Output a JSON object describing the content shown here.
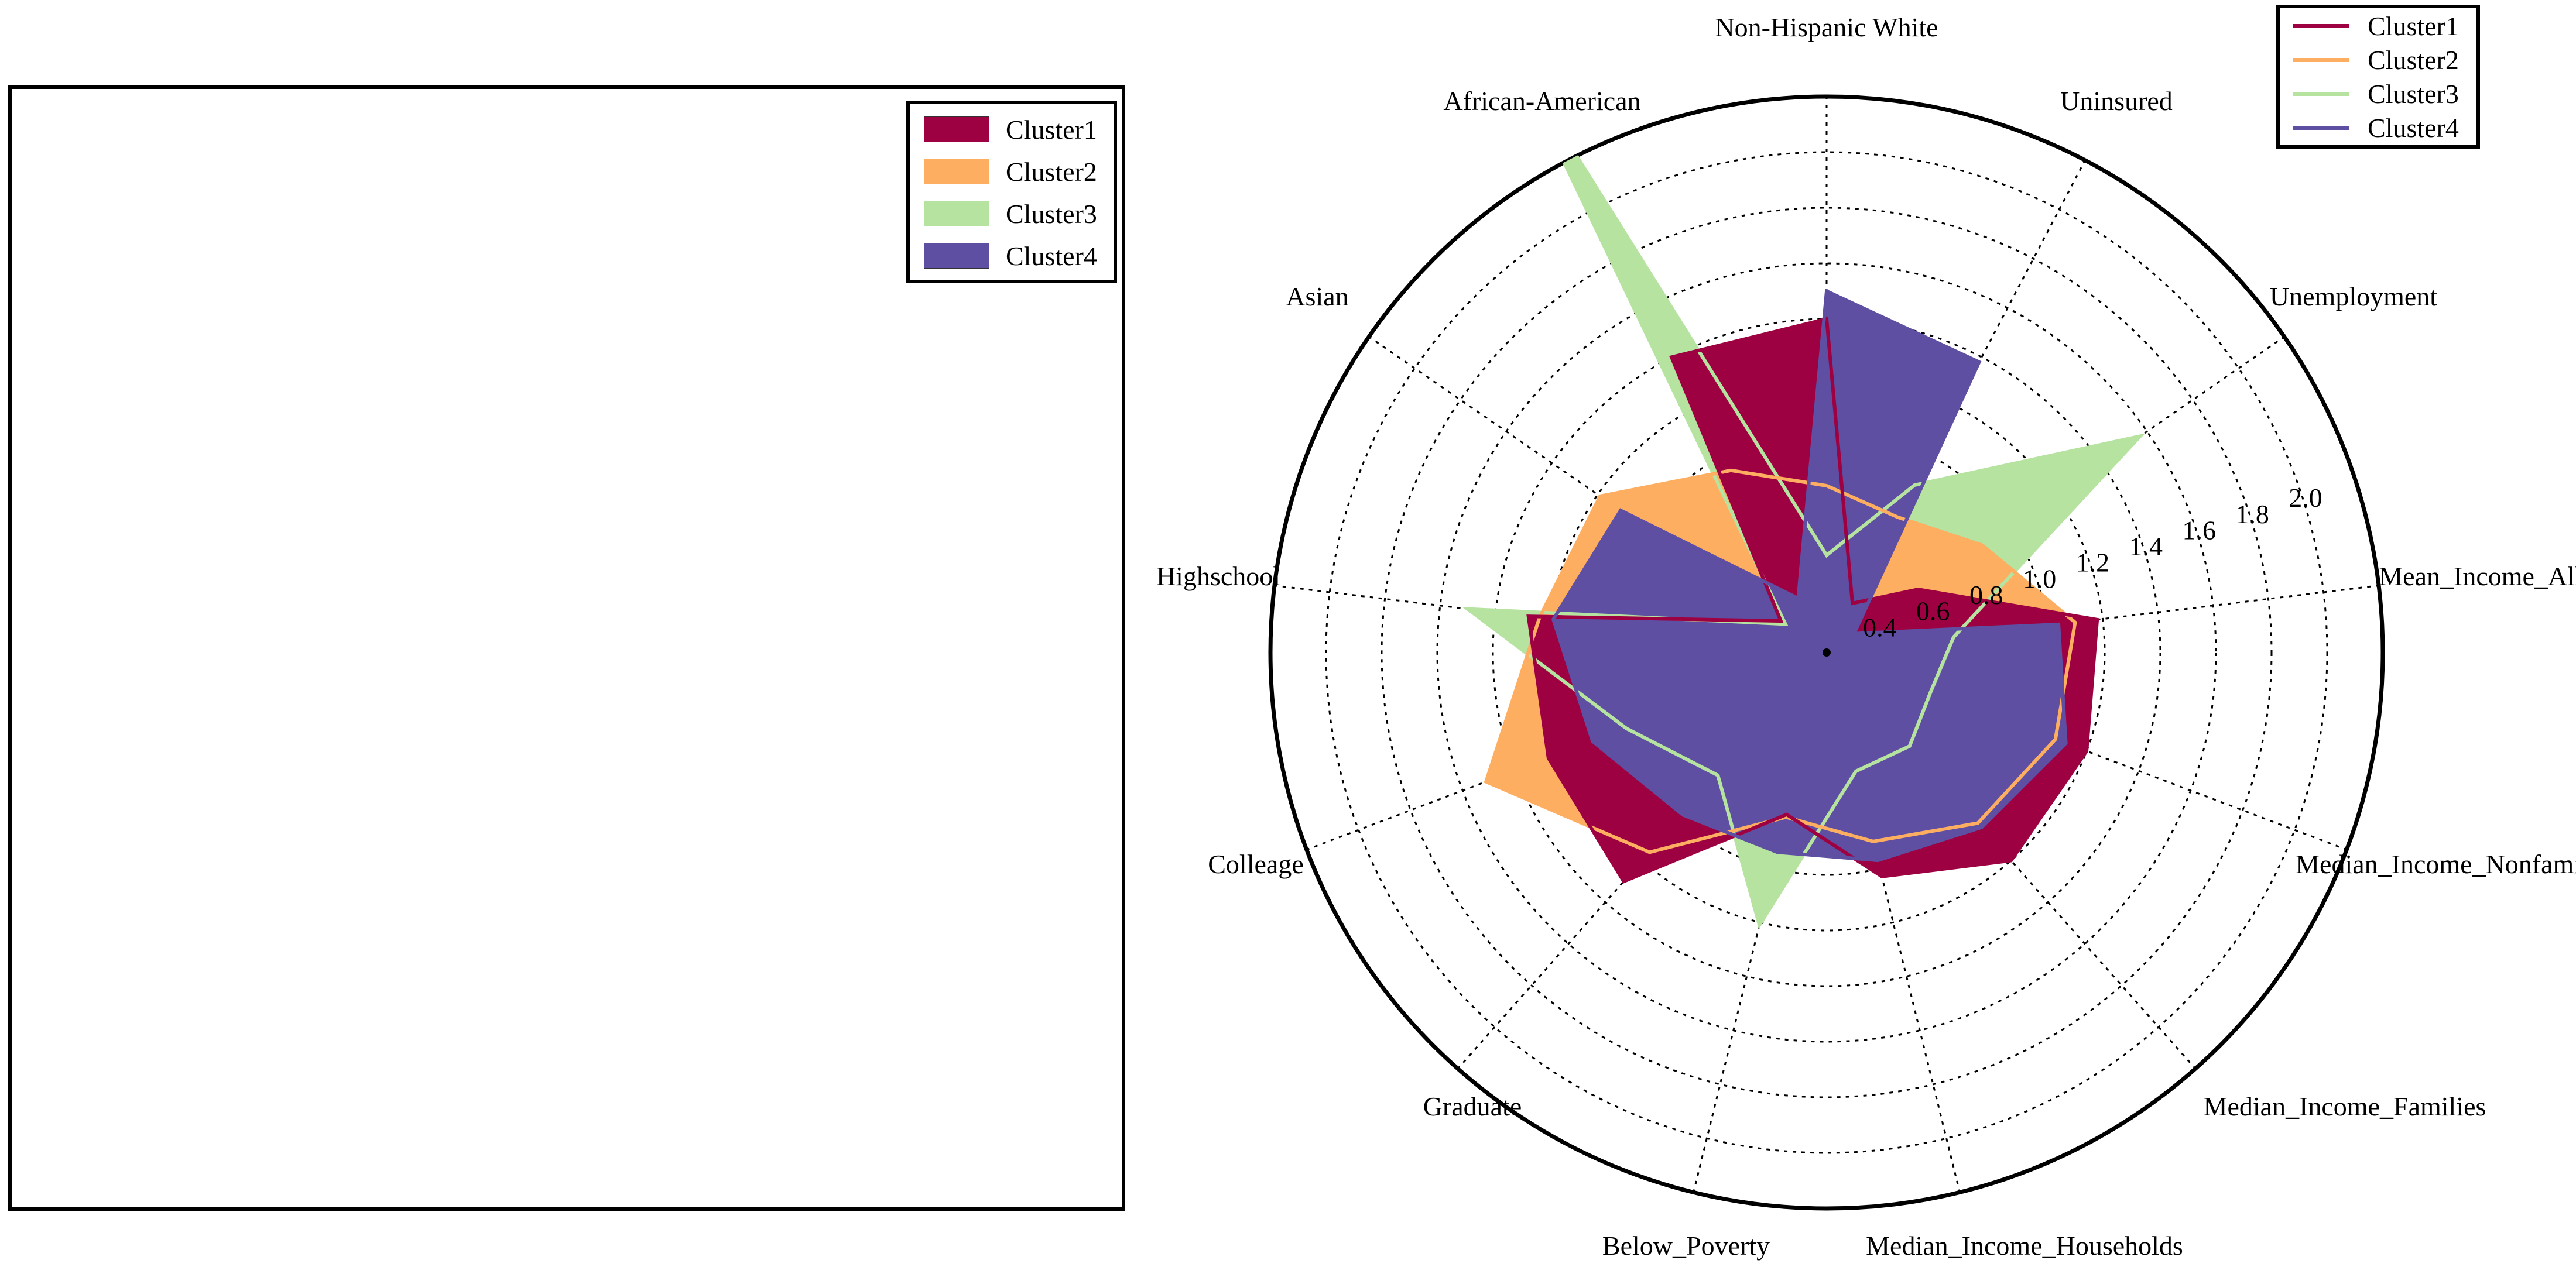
{
  "legend_map": {
    "items": [
      {
        "label": "Cluster1",
        "color": "#9e0142"
      },
      {
        "label": "Cluster2",
        "color": "#fdae61"
      },
      {
        "label": "Cluster3",
        "color": "#b6e3a0"
      },
      {
        "label": "Cluster4",
        "color": "#5e4fa2"
      }
    ]
  },
  "legend_radar": {
    "items": [
      {
        "label": "Cluster1",
        "color": "#9e0142"
      },
      {
        "label": "Cluster2",
        "color": "#fdae61"
      },
      {
        "label": "Cluster3",
        "color": "#b6e3a0"
      },
      {
        "label": "Cluster4",
        "color": "#5e4fa2"
      }
    ]
  },
  "chart_data": {
    "type": "radar",
    "axes": [
      "Non-Hispanic White",
      "Uninsured",
      "Unemployment",
      "Mean_Income_All",
      "Median_Income_Nonfamily",
      "Median_Income_Families",
      "Median_Income_Households",
      "Below_Poverty",
      "Graduate",
      "Colleage",
      "Highschool",
      "Asian",
      "African-American"
    ],
    "radial_ticks": [
      0.4,
      0.6,
      0.8,
      1.0,
      1.2,
      1.4,
      1.6,
      1.8,
      2.0
    ],
    "rlim": [
      0.2,
      2.2
    ],
    "grid": true,
    "legend_position": "top-right",
    "series": [
      {
        "name": "Cluster1",
        "color": "#9e0142",
        "values": [
          1.4,
          0.4,
          0.6,
          1.18,
          1.2,
          1.2,
          1.03,
          0.8,
          1.3,
          1.27,
          1.28,
          0.4,
          1.4
        ]
      },
      {
        "name": "Cluster2",
        "color": "#fdae61",
        "values": [
          0.8,
          0.75,
          0.88,
          1.1,
          1.08,
          1.02,
          0.9,
          0.81,
          1.16,
          1.51,
          1.24,
          1.19,
          0.94
        ]
      },
      {
        "name": "Cluster3",
        "color": "#b6e3a0",
        "values": [
          0.55,
          0.88,
          1.57,
          0.66,
          0.6,
          0.65,
          0.64,
          1.21,
          0.79,
          0.97,
          1.5,
          0.38,
          2.65
        ]
      },
      {
        "name": "Cluster4",
        "color": "#5e4fa2",
        "values": [
          1.5,
          1.38,
          0.32,
          1.04,
          1.12,
          1.04,
          0.97,
          0.94,
          0.98,
          1.1,
          1.19,
          1.1,
          0.42
        ]
      }
    ]
  }
}
